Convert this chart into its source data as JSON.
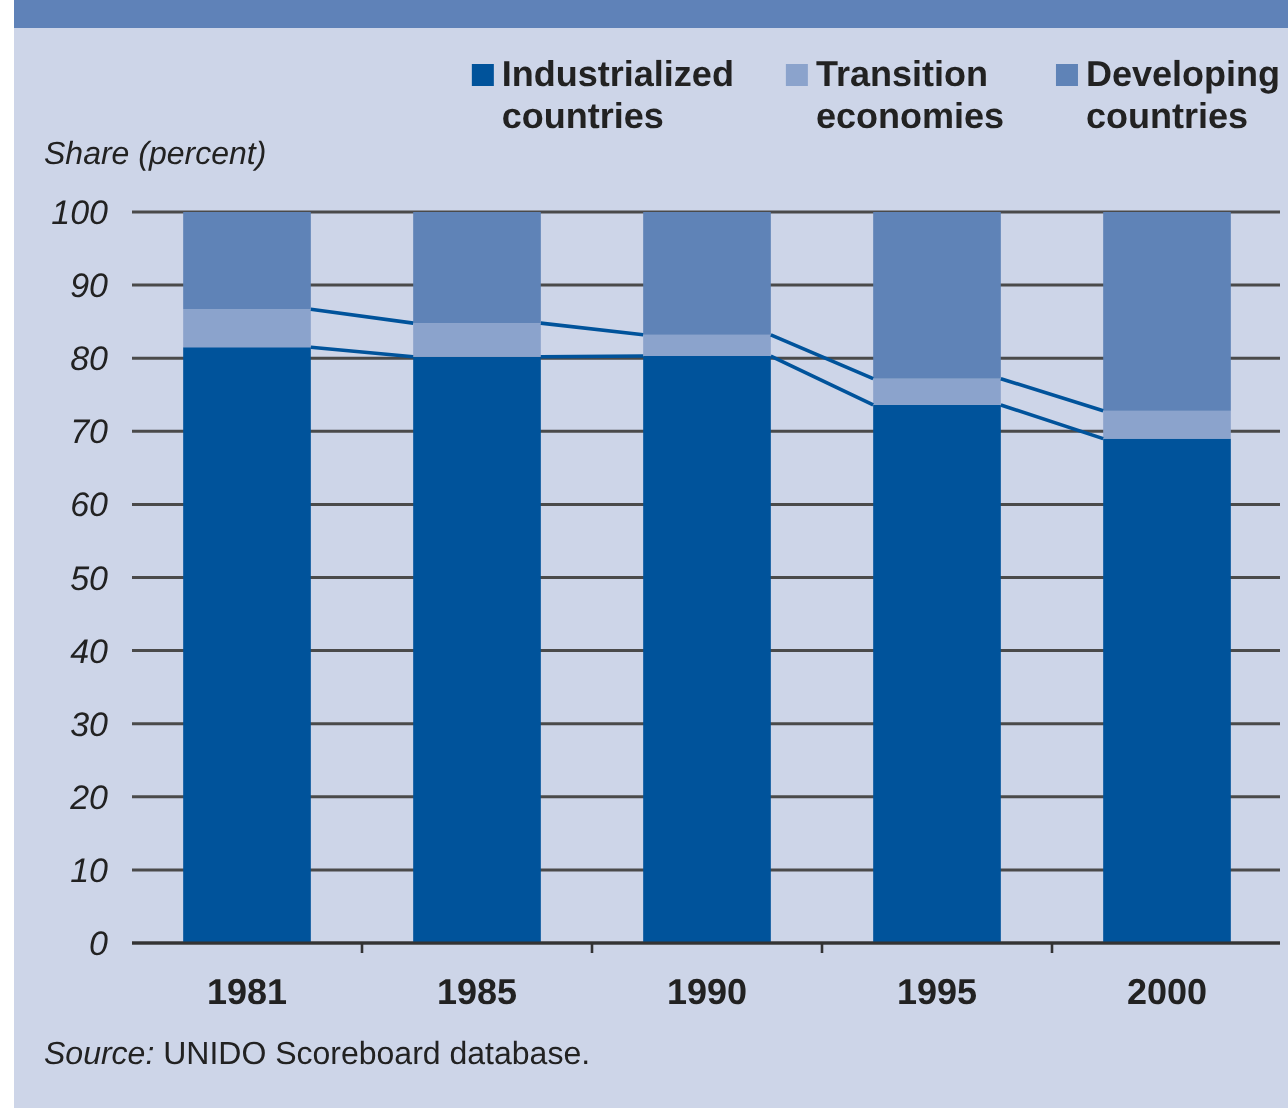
{
  "chart_data": {
    "type": "bar",
    "stacked": true,
    "ylabel": "Share (percent)",
    "categories": [
      "1981",
      "1985",
      "1990",
      "1995",
      "2000"
    ],
    "series": [
      {
        "name": "Industrialized countries",
        "color": "#00539b",
        "values": [
          81.5,
          80.2,
          80.3,
          73.6,
          69.0
        ]
      },
      {
        "name": "Transition economies",
        "color": "#8ba3cc",
        "values": [
          5.2,
          4.6,
          2.9,
          3.6,
          3.8
        ]
      },
      {
        "name": "Developing countries",
        "color": "#5f83b7",
        "values": [
          13.3,
          15.2,
          16.8,
          22.8,
          27.2
        ]
      }
    ],
    "ylim": [
      0,
      100
    ],
    "yticks": [
      0,
      10,
      20,
      30,
      40,
      50,
      60,
      70,
      80,
      90,
      100
    ],
    "grid": "y",
    "legend": "top right",
    "annotations": [
      "Source: UNIDO Scoreboard database."
    ]
  }
}
